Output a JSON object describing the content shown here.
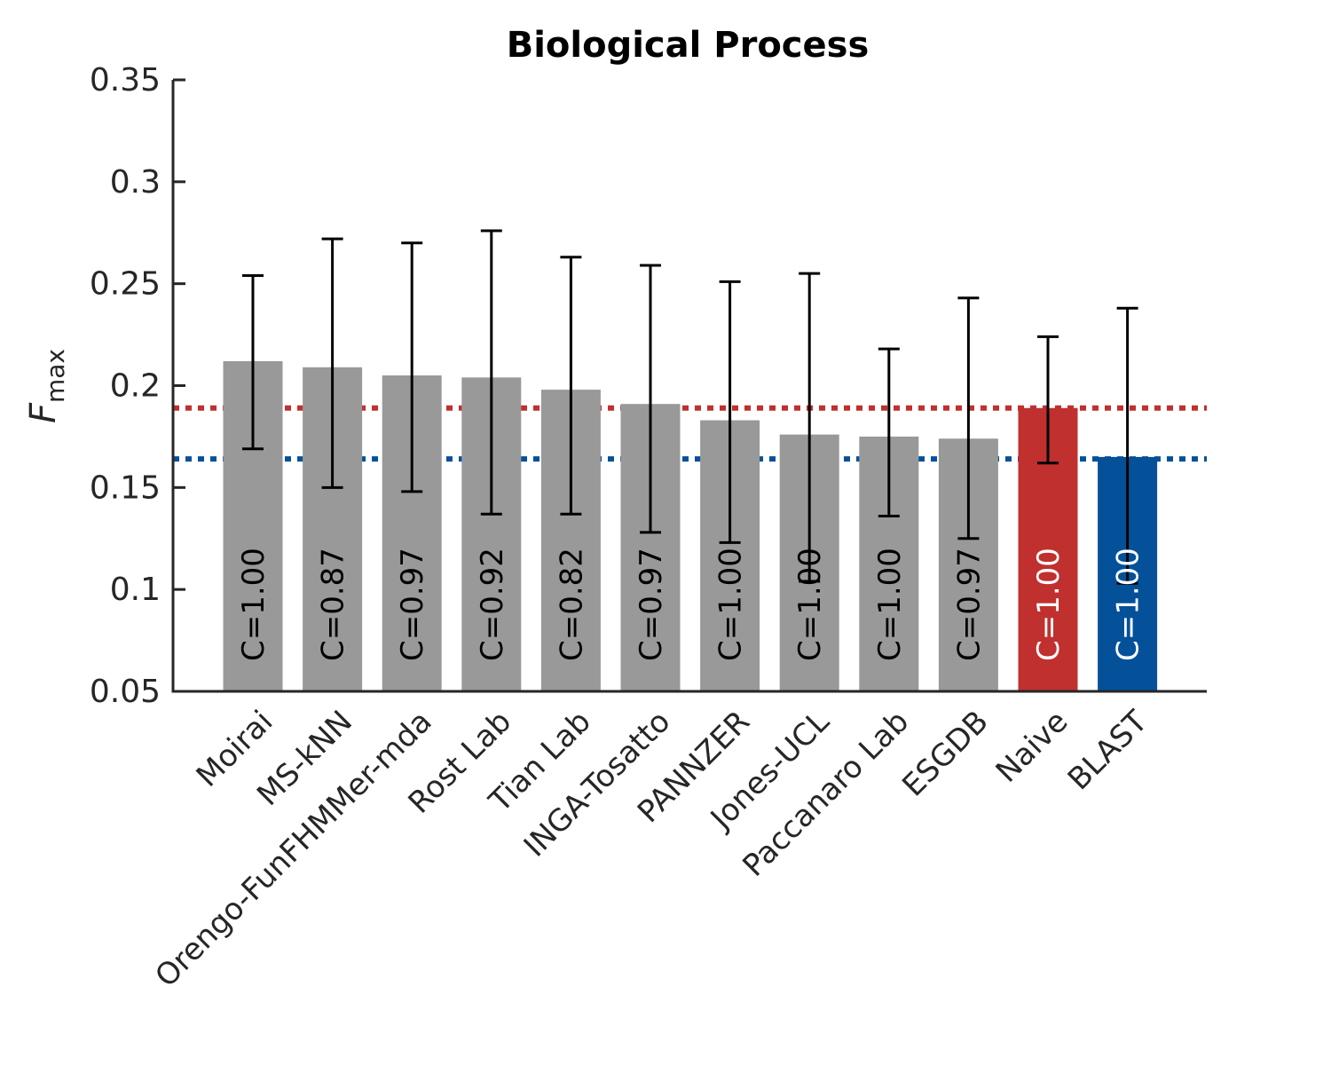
{
  "chart_data": {
    "type": "bar",
    "title": "Biological Process",
    "ylabel": "F",
    "ylabel_subscript": "max",
    "xlabel": "",
    "ylim": [
      0.05,
      0.35
    ],
    "yticks": [
      0.05,
      0.1,
      0.15,
      0.2,
      0.25,
      0.3,
      0.35
    ],
    "ytick_labels": [
      "0.05",
      "0.1",
      "0.15",
      "0.2",
      "0.25",
      "0.3",
      "0.35"
    ],
    "categories": [
      "Moirai",
      "MS-kNN",
      "Orengo-FunFHMMer-mda",
      "Rost Lab",
      "Tian Lab",
      "INGA-Tosatto",
      "PANNZER",
      "Jones-UCL",
      "Paccanaro Lab",
      "ESGDB",
      "Naive",
      "BLAST"
    ],
    "values": [
      0.212,
      0.209,
      0.205,
      0.204,
      0.198,
      0.191,
      0.183,
      0.176,
      0.175,
      0.174,
      0.189,
      0.165
    ],
    "error_lower": [
      0.169,
      0.15,
      0.148,
      0.137,
      0.137,
      0.128,
      0.123,
      0.104,
      0.136,
      0.125,
      0.162,
      0.103
    ],
    "error_upper": [
      0.254,
      0.272,
      0.27,
      0.276,
      0.263,
      0.259,
      0.251,
      0.255,
      0.218,
      0.243,
      0.224,
      0.238
    ],
    "bar_labels": [
      "C=1.00",
      "C=0.87",
      "C=0.97",
      "C=0.92",
      "C=0.82",
      "C=0.97",
      "C=1.00",
      "C=1.00",
      "C=1.00",
      "C=0.97",
      "C=1.00",
      "C=1.00"
    ],
    "bar_colors": [
      "#999999",
      "#999999",
      "#999999",
      "#999999",
      "#999999",
      "#999999",
      "#999999",
      "#999999",
      "#999999",
      "#999999",
      "#c0302f",
      "#04519a"
    ],
    "bar_label_colors": [
      "#000000",
      "#000000",
      "#000000",
      "#000000",
      "#000000",
      "#000000",
      "#000000",
      "#000000",
      "#000000",
      "#000000",
      "#ffffff",
      "#ffffff"
    ],
    "reference_lines": [
      {
        "value": 0.189,
        "color": "#c0302f"
      },
      {
        "value": 0.164,
        "color": "#04519a"
      }
    ],
    "grid": false,
    "legend": "none"
  }
}
